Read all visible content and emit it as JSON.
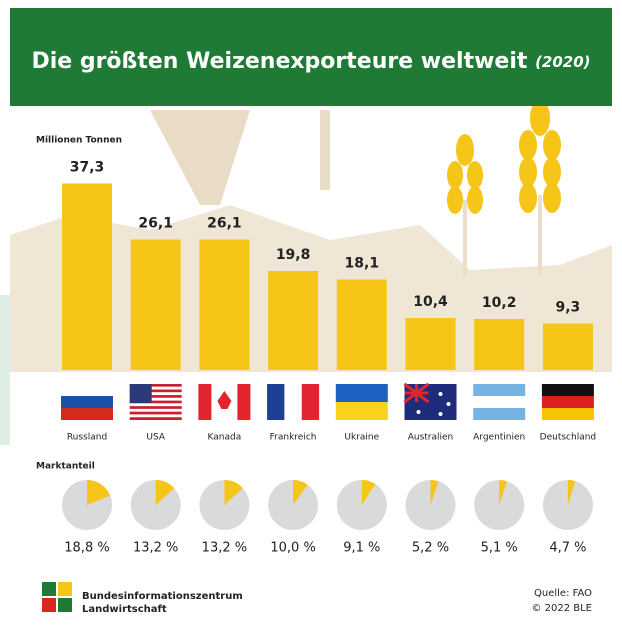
{
  "chart_data": [
    {
      "type": "bar",
      "title": "Die größten Weizenexporteure weltweit",
      "subtitle": "(2020)",
      "y_label": "Millionen Tonnen",
      "categories": [
        "Russland",
        "USA",
        "Kanada",
        "Frankreich",
        "Ukraine",
        "Australien",
        "Argentinien",
        "Deutschland"
      ],
      "values": [
        37.3,
        26.1,
        26.1,
        19.8,
        18.1,
        10.4,
        10.2,
        9.3
      ],
      "value_labels": [
        "37,3",
        "26,1",
        "26,1",
        "19,8",
        "18,1",
        "10,4",
        "10,2",
        "9,3"
      ],
      "color": "#f5c518"
    },
    {
      "type": "pie",
      "title": "Marktanteil",
      "values": [
        18.8,
        13.2,
        13.2,
        10.0,
        9.1,
        5.2,
        5.1,
        4.7
      ],
      "value_labels": [
        "18,8 %",
        "13,2 %",
        "13,2 %",
        "10,0 %",
        "9,1 %",
        "5,2 %",
        "5,1 %",
        "4,7 %"
      ],
      "color": "#f5c518",
      "track_color": "#dadada"
    }
  ],
  "footer": {
    "publisher": [
      "Bundesinformationszentrum",
      "Landwirtschaft"
    ],
    "source": "Quelle: FAO",
    "copyright": "© 2022 BLE"
  }
}
